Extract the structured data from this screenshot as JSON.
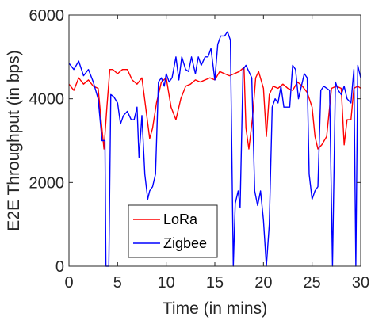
{
  "chart_data": {
    "type": "line",
    "title": "",
    "xlabel": "Time (in mins)",
    "ylabel": "E2E Throughput (in bps)",
    "xlim": [
      0,
      30
    ],
    "ylim": [
      0,
      6000
    ],
    "xticks": [
      0,
      5,
      10,
      15,
      20,
      25,
      30
    ],
    "yticks": [
      0,
      2000,
      4000,
      6000
    ],
    "grid": false,
    "legend_position": "bottom-center",
    "series": [
      {
        "name": "LoRa",
        "color": "#ff0000",
        "points": [
          [
            0,
            4350
          ],
          [
            0.5,
            4200
          ],
          [
            1,
            4500
          ],
          [
            1.5,
            4350
          ],
          [
            2,
            4450
          ],
          [
            2.5,
            4300
          ],
          [
            3,
            4250
          ],
          [
            3.3,
            3500
          ],
          [
            3.6,
            2800
          ],
          [
            3.9,
            3800
          ],
          [
            4.2,
            4700
          ],
          [
            4.5,
            4700
          ],
          [
            5,
            4600
          ],
          [
            5.5,
            4700
          ],
          [
            6,
            4700
          ],
          [
            6.5,
            4450
          ],
          [
            7,
            4350
          ],
          [
            7.5,
            4500
          ],
          [
            8,
            3600
          ],
          [
            8.3,
            3050
          ],
          [
            8.6,
            3300
          ],
          [
            9,
            3900
          ],
          [
            9.5,
            4400
          ],
          [
            10,
            4500
          ],
          [
            10.5,
            3800
          ],
          [
            11,
            3500
          ],
          [
            11.5,
            4000
          ],
          [
            12,
            4300
          ],
          [
            12.5,
            4350
          ],
          [
            13,
            4450
          ],
          [
            13.5,
            4400
          ],
          [
            14,
            4450
          ],
          [
            14.5,
            4500
          ],
          [
            15,
            4450
          ],
          [
            15.5,
            4650
          ],
          [
            16,
            4600
          ],
          [
            16.5,
            4550
          ],
          [
            17,
            4600
          ],
          [
            17.5,
            4650
          ],
          [
            18,
            4750
          ],
          [
            18.2,
            3300
          ],
          [
            18.5,
            2800
          ],
          [
            18.9,
            3600
          ],
          [
            19.2,
            4500
          ],
          [
            19.5,
            4650
          ],
          [
            20,
            4250
          ],
          [
            20.3,
            3100
          ],
          [
            20.6,
            4100
          ],
          [
            21,
            4300
          ],
          [
            21.5,
            4250
          ],
          [
            22,
            4350
          ],
          [
            22.5,
            4250
          ],
          [
            23,
            4200
          ],
          [
            23.5,
            4400
          ],
          [
            24,
            4300
          ],
          [
            24.5,
            4150
          ],
          [
            25,
            3800
          ],
          [
            25.3,
            3100
          ],
          [
            25.6,
            2800
          ],
          [
            26,
            2900
          ],
          [
            26.5,
            3100
          ],
          [
            27,
            4250
          ],
          [
            27.5,
            4300
          ],
          [
            28,
            4250
          ],
          [
            28.3,
            2900
          ],
          [
            28.6,
            3500
          ],
          [
            29,
            3500
          ],
          [
            29.3,
            4250
          ],
          [
            29.7,
            4300
          ],
          [
            30,
            4250
          ]
        ]
      },
      {
        "name": "Zigbee",
        "color": "#0000ff",
        "points": [
          [
            0,
            4850
          ],
          [
            0.5,
            4700
          ],
          [
            1,
            4900
          ],
          [
            1.5,
            4550
          ],
          [
            2,
            4700
          ],
          [
            2.5,
            4400
          ],
          [
            3,
            4000
          ],
          [
            3.4,
            3000
          ],
          [
            3.7,
            3000
          ],
          [
            3.8,
            0
          ],
          [
            4.1,
            0
          ],
          [
            4.3,
            4100
          ],
          [
            4.6,
            4050
          ],
          [
            5,
            3900
          ],
          [
            5.3,
            3400
          ],
          [
            5.6,
            3600
          ],
          [
            6,
            3700
          ],
          [
            6.4,
            3500
          ],
          [
            6.7,
            3500
          ],
          [
            7,
            3800
          ],
          [
            7.2,
            2600
          ],
          [
            7.5,
            3600
          ],
          [
            7.8,
            2200
          ],
          [
            8.1,
            1600
          ],
          [
            8.3,
            1800
          ],
          [
            8.6,
            1900
          ],
          [
            8.9,
            2200
          ],
          [
            9.2,
            4400
          ],
          [
            9.5,
            4500
          ],
          [
            9.8,
            4300
          ],
          [
            10,
            4600
          ],
          [
            10.3,
            4400
          ],
          [
            10.6,
            4500
          ],
          [
            11,
            5000
          ],
          [
            11.3,
            4450
          ],
          [
            11.6,
            5000
          ],
          [
            12,
            4700
          ],
          [
            12.3,
            4650
          ],
          [
            12.6,
            5000
          ],
          [
            13,
            4600
          ],
          [
            13.3,
            5000
          ],
          [
            13.6,
            4800
          ],
          [
            14,
            5000
          ],
          [
            14.3,
            5000
          ],
          [
            14.6,
            5200
          ],
          [
            15,
            4450
          ],
          [
            15.3,
            5300
          ],
          [
            15.6,
            5500
          ],
          [
            16,
            5500
          ],
          [
            16.3,
            5600
          ],
          [
            16.6,
            5400
          ],
          [
            16.9,
            0
          ],
          [
            17.1,
            1500
          ],
          [
            17.4,
            1800
          ],
          [
            17.6,
            1400
          ],
          [
            17.9,
            4700
          ],
          [
            18.2,
            4800
          ],
          [
            18.5,
            4650
          ],
          [
            18.8,
            4500
          ],
          [
            19.1,
            1800
          ],
          [
            19.4,
            1450
          ],
          [
            19.7,
            1800
          ],
          [
            20,
            1100
          ],
          [
            20.3,
            0
          ],
          [
            20.6,
            1000
          ],
          [
            20.9,
            3800
          ],
          [
            21.2,
            4000
          ],
          [
            21.5,
            3900
          ],
          [
            21.8,
            4300
          ],
          [
            22.1,
            3800
          ],
          [
            22.4,
            3800
          ],
          [
            22.7,
            3800
          ],
          [
            23,
            4800
          ],
          [
            23.3,
            4700
          ],
          [
            23.6,
            4000
          ],
          [
            23.9,
            4300
          ],
          [
            24.2,
            4600
          ],
          [
            24.5,
            4500
          ],
          [
            24.7,
            2200
          ],
          [
            25,
            1600
          ],
          [
            25.3,
            1800
          ],
          [
            25.6,
            1900
          ],
          [
            25.9,
            4200
          ],
          [
            26.2,
            4300
          ],
          [
            26.5,
            4250
          ],
          [
            26.8,
            4200
          ],
          [
            27.1,
            0
          ],
          [
            27.4,
            4400
          ],
          [
            27.7,
            4200
          ],
          [
            28,
            4100
          ],
          [
            28.3,
            4300
          ],
          [
            28.6,
            4000
          ],
          [
            29,
            3900
          ],
          [
            29.3,
            4700
          ],
          [
            29.5,
            0
          ],
          [
            29.7,
            4800
          ],
          [
            30,
            4500
          ]
        ]
      }
    ]
  }
}
